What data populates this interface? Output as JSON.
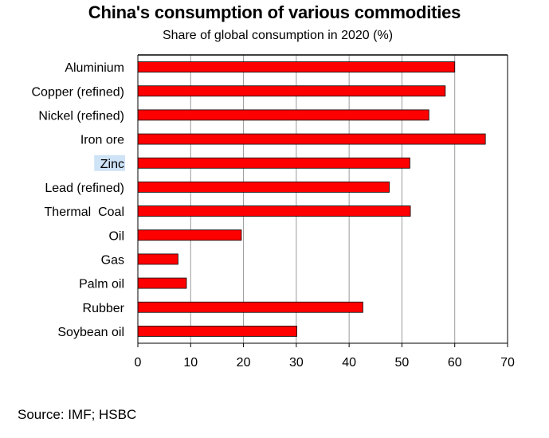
{
  "chart_data": {
    "type": "bar",
    "orientation": "horizontal",
    "title": "China's consumption of various commodities",
    "subtitle": "Share of global consumption in 2020 (%)",
    "categories": [
      "Aluminium",
      "Copper (refined)",
      "Nickel (refined)",
      "Iron ore",
      "Zinc",
      "Lead (refined)",
      "Thermal  Coal",
      "Oil",
      "Gas",
      "Palm oil",
      "Rubber",
      "Soybean oil"
    ],
    "values": [
      60,
      58.2,
      55.1,
      65.8,
      51.5,
      47.6,
      51.6,
      19.6,
      7.6,
      9.2,
      42.6,
      30.1
    ],
    "xlim": [
      0,
      70
    ],
    "xticks": [
      0,
      10,
      20,
      30,
      40,
      50,
      60,
      70
    ],
    "xlabel": "",
    "ylabel": "",
    "grid": "vertical",
    "highlighted_category": "Zinc",
    "bar_color": "#ff0000",
    "highlight_color": "#cfe3f7",
    "source": "Source: IMF; HSBC"
  }
}
